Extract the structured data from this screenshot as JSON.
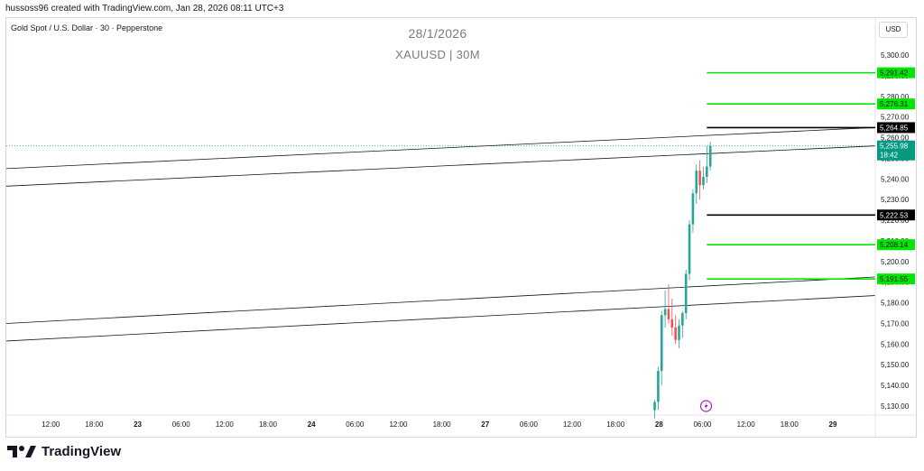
{
  "header": {
    "credit": "hussoss96 created with TradingView.com, Jan 28, 2026 08:11 UTC+3",
    "symbol": "Gold Spot / U.S. Dollar · 30 · Pepperstone",
    "currency": "USD"
  },
  "watermark": {
    "date": "28/1/2026",
    "ticker": "XAUUSD | 30M"
  },
  "brand": {
    "name": "TradingView"
  },
  "colors": {
    "up": "#26a69a",
    "down": "#ef5350",
    "green_level": "#00e600",
    "black_level": "#000000",
    "last_price": "#089981"
  },
  "chart_data": {
    "type": "candlestick",
    "y_range": [
      5124,
      5310
    ],
    "x_range": [
      0,
      1000
    ],
    "y_ticks": [
      5130,
      5140,
      5150,
      5160,
      5170,
      5180,
      5190,
      5200,
      5210,
      5220,
      5230,
      5240,
      5250,
      5260,
      5270,
      5280,
      5290,
      5300
    ],
    "y_tick_labels": [
      "5,130.00",
      "5,140.00",
      "5,150.00",
      "5,160.00",
      "5,170.00",
      "5,180.00",
      "5,190.00",
      "5,200.00",
      "5,210.00",
      "5,220.00",
      "5,230.00",
      "5,240.00",
      "5,250.00",
      "5,260.00",
      "5,270.00",
      "5,280.00",
      "5,290.00",
      "5,300.00"
    ],
    "x_ticks": [
      {
        "label": "12:00",
        "t": 20,
        "bold": false
      },
      {
        "label": "18:00",
        "t": 70,
        "bold": false
      },
      {
        "label": "23",
        "t": 120,
        "bold": true
      },
      {
        "label": "06:00",
        "t": 170,
        "bold": false
      },
      {
        "label": "12:00",
        "t": 220,
        "bold": false
      },
      {
        "label": "18:00",
        "t": 270,
        "bold": false
      },
      {
        "label": "24",
        "t": 320,
        "bold": true
      },
      {
        "label": "06:00",
        "t": 370,
        "bold": false
      },
      {
        "label": "12:00",
        "t": 420,
        "bold": false
      },
      {
        "label": "18:00",
        "t": 470,
        "bold": false
      },
      {
        "label": "27",
        "t": 520,
        "bold": true
      },
      {
        "label": "06:00",
        "t": 570,
        "bold": false
      },
      {
        "label": "12:00",
        "t": 620,
        "bold": false
      },
      {
        "label": "18:00",
        "t": 670,
        "bold": false
      },
      {
        "label": "28",
        "t": 720,
        "bold": true
      },
      {
        "label": "06:00",
        "t": 770,
        "bold": false
      },
      {
        "label": "12:00",
        "t": 820,
        "bold": false
      },
      {
        "label": "18:00",
        "t": 870,
        "bold": false
      },
      {
        "label": "29",
        "t": 920,
        "bold": true
      }
    ],
    "candles": [
      {
        "t": 715,
        "o": 5128,
        "h": 5133,
        "l": 5124,
        "c": 5132
      },
      {
        "t": 719,
        "o": 5132,
        "h": 5149,
        "l": 5128,
        "c": 5147
      },
      {
        "t": 723,
        "o": 5147,
        "h": 5176,
        "l": 5140,
        "c": 5174
      },
      {
        "t": 727,
        "o": 5174,
        "h": 5186,
        "l": 5168,
        "c": 5177
      },
      {
        "t": 731,
        "o": 5177,
        "h": 5189,
        "l": 5170,
        "c": 5172
      },
      {
        "t": 735,
        "o": 5172,
        "h": 5182,
        "l": 5164,
        "c": 5168
      },
      {
        "t": 739,
        "o": 5168,
        "h": 5174,
        "l": 5160,
        "c": 5162
      },
      {
        "t": 743,
        "o": 5162,
        "h": 5172,
        "l": 5158,
        "c": 5169
      },
      {
        "t": 747,
        "o": 5169,
        "h": 5176,
        "l": 5163,
        "c": 5175
      },
      {
        "t": 751,
        "o": 5175,
        "h": 5196,
        "l": 5172,
        "c": 5194
      },
      {
        "t": 755,
        "o": 5194,
        "h": 5220,
        "l": 5191,
        "c": 5218
      },
      {
        "t": 759,
        "o": 5218,
        "h": 5235,
        "l": 5214,
        "c": 5233
      },
      {
        "t": 763,
        "o": 5233,
        "h": 5247,
        "l": 5228,
        "c": 5244
      },
      {
        "t": 767,
        "o": 5244,
        "h": 5249,
        "l": 5230,
        "c": 5237
      },
      {
        "t": 771,
        "o": 5237,
        "h": 5246,
        "l": 5235,
        "c": 5241
      },
      {
        "t": 775,
        "o": 5241,
        "h": 5256,
        "l": 5238,
        "c": 5246
      },
      {
        "t": 779,
        "o": 5246,
        "h": 5258,
        "l": 5244,
        "c": 5256
      }
    ],
    "levels": [
      {
        "price": 5291.42,
        "label": "5,291.42",
        "color": "green",
        "t_start": 775
      },
      {
        "price": 5276.31,
        "label": "5,276.31",
        "color": "green",
        "t_start": 775
      },
      {
        "price": 5264.85,
        "label": "5,264.85",
        "color": "black",
        "t_start": 775
      },
      {
        "price": 5222.53,
        "label": "5,222.53",
        "color": "black",
        "t_start": 775
      },
      {
        "price": 5208.14,
        "label": "5,208.14",
        "color": "green",
        "t_start": 775
      },
      {
        "price": 5191.55,
        "label": "5,191.55",
        "color": "green",
        "t_start": 775
      }
    ],
    "last_price": {
      "price": 5255.98,
      "label": "5,255.98",
      "countdown": "18:42"
    },
    "trendlines": [
      {
        "t1": 0,
        "p1": 5245,
        "t2": 958,
        "p2": 5264.9
      },
      {
        "t1": 0,
        "p1": 5236.5,
        "t2": 958,
        "p2": 5256
      },
      {
        "t1": 0,
        "p1": 5170,
        "t2": 958,
        "p2": 5192.5
      },
      {
        "t1": 0,
        "p1": 5161.5,
        "t2": 958,
        "p2": 5183.5
      }
    ]
  }
}
